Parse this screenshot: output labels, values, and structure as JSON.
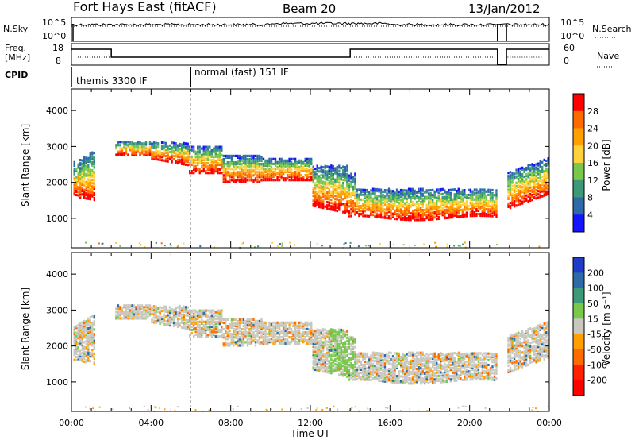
{
  "header": {
    "station": "Fort Hays East (fitACF)",
    "beam": "Beam 20",
    "date": "13/Jan/2012"
  },
  "side_labels": {
    "nsky": "N.Sky",
    "freq_line1": "Freq.",
    "freq_line2": "[MHz]",
    "cpid": "CPID",
    "nsearch": "N.Search",
    "nave": "Nave",
    "noise_top": "10^5",
    "noise_bottom": "10^0",
    "freq_top": "18",
    "freq_bottom": "8",
    "nave_top": "60",
    "nave_bottom": "0"
  },
  "cpid_segments": [
    {
      "label": "themis 3300 IF",
      "start_hour": 0
    },
    {
      "label": "normal (fast) 151 IF",
      "start_hour": 6
    }
  ],
  "chart_data": [
    {
      "type": "heatmap",
      "panel": "power",
      "ylabel": "Slant Range [km]",
      "xlabel": "Time UT",
      "xlim_hours": [
        0,
        24
      ],
      "ylim": [
        180,
        4600
      ],
      "yticks": [
        1000,
        2000,
        3000,
        4000
      ],
      "xticks": [
        "00:00",
        "04:00",
        "08:00",
        "12:00",
        "16:00",
        "20:00",
        "00:00"
      ],
      "colorbar": {
        "label": "Power [dB]",
        "ticks": [
          "28",
          "24",
          "20",
          "16",
          "12",
          "8",
          "4"
        ],
        "colors": [
          "#ff0000",
          "#ff6a00",
          "#ffa000",
          "#ffd23c",
          "#78c84b",
          "#3c9a78",
          "#2f6aa8",
          "#1414ff"
        ]
      }
    },
    {
      "type": "heatmap",
      "panel": "velocity",
      "ylabel": "Slant Range [km]",
      "xlabel": "Time UT",
      "xlim_hours": [
        0,
        24
      ],
      "ylim": [
        180,
        4600
      ],
      "yticks": [
        1000,
        2000,
        3000,
        4000
      ],
      "xticks": [
        "00:00",
        "04:00",
        "08:00",
        "12:00",
        "16:00",
        "20:00",
        "00:00"
      ],
      "colorbar": {
        "label": "Velocity [m s⁻¹]",
        "ticks": [
          "200",
          "100",
          "50",
          "15",
          "-15",
          "-50",
          "-100",
          "-200"
        ],
        "colors": [
          "#1e3cc8",
          "#2f6aa8",
          "#3c9a78",
          "#78c84b",
          "#c8c8c0",
          "#ffa000",
          "#ff6a00",
          "#ff2000",
          "#ff0000"
        ]
      }
    }
  ],
  "x_axis_title": "Time UT"
}
